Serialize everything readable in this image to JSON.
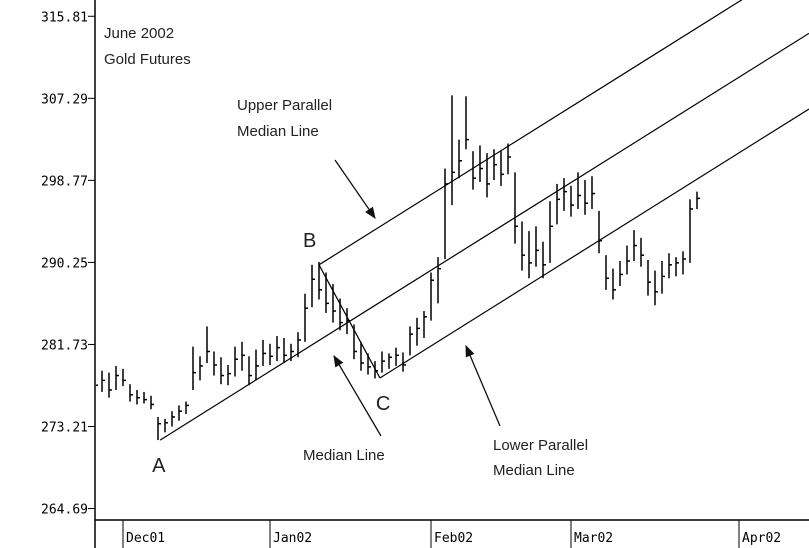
{
  "chart_data": {
    "type": "ohlc",
    "title": [
      "June 2002",
      "Gold Futures"
    ],
    "x": [
      0,
      1,
      2,
      3,
      4,
      5,
      6,
      7,
      8,
      9,
      10,
      11,
      12,
      13,
      14,
      15,
      16,
      17,
      18,
      19,
      20,
      21,
      22,
      23,
      24,
      25,
      26,
      27,
      28,
      29,
      30,
      31,
      32,
      33,
      34,
      35,
      36,
      37,
      38,
      39,
      40,
      41,
      42,
      43,
      44,
      45,
      46,
      47,
      48,
      49,
      50,
      51,
      52,
      53,
      54,
      55,
      56,
      57,
      58,
      59,
      60,
      61,
      62,
      63,
      64,
      65,
      66,
      67,
      68,
      69,
      70,
      71,
      72,
      73,
      74,
      75,
      76,
      77,
      78,
      79,
      80,
      81,
      82,
      83,
      84,
      85,
      86
    ],
    "high": [
      278.5,
      279,
      278.8,
      279.5,
      279.2,
      277.6,
      277,
      276.8,
      276.4,
      274.2,
      274,
      274.8,
      275.4,
      275.8,
      281.5,
      280.5,
      283.6,
      281,
      280.4,
      279.6,
      281.5,
      282,
      280.5,
      281.2,
      282.2,
      281.8,
      282.6,
      282.4,
      281.8,
      283,
      287,
      290,
      290.3,
      289.2,
      288,
      286.5,
      285.5,
      283.8,
      282,
      280.8,
      280,
      281,
      280.8,
      281.4,
      280.9,
      283.6,
      284.5,
      285.2,
      289.2,
      290.8,
      300,
      307.6,
      303,
      307.5,
      301.8,
      302.4,
      301.6,
      302,
      301.8,
      302.6,
      299.6,
      294.5,
      293.5,
      294,
      292.4,
      296.6,
      298.4,
      299,
      298.2,
      299.6,
      298.8,
      299.2,
      295.6,
      291,
      289.6,
      290.4,
      292,
      293.6,
      292.8,
      290.5,
      289.4,
      290.4,
      291.2,
      290.8,
      291.4,
      296.8,
      297.6
    ],
    "low": [
      276.5,
      276.8,
      276.2,
      277,
      277.4,
      275.8,
      275.5,
      275.6,
      275,
      271.8,
      272.6,
      273.2,
      273.8,
      274.5,
      277,
      278,
      279.8,
      278.5,
      277.6,
      277.5,
      278.4,
      279,
      277.5,
      278,
      279.5,
      279.6,
      280,
      279.8,
      280,
      280.4,
      282,
      285.6,
      286.4,
      285,
      284,
      283.2,
      282.8,
      280.2,
      279,
      278.6,
      278.2,
      278.8,
      279.2,
      279.5,
      278.9,
      280.6,
      281.6,
      282.4,
      284.2,
      286,
      290.6,
      296.2,
      299,
      302,
      297.8,
      298.6,
      297,
      298.8,
      298.2,
      299.4,
      292.2,
      289.4,
      288.6,
      289.8,
      288.6,
      290.2,
      294.2,
      295.6,
      295,
      295.8,
      295.2,
      295.8,
      291.2,
      287.4,
      286.4,
      287.8,
      289,
      290.4,
      289.8,
      286.8,
      285.8,
      287,
      288.6,
      288.8,
      289,
      290.2,
      295.8
    ],
    "close": [
      277.5,
      278,
      277,
      278.5,
      278,
      276.5,
      276.2,
      276,
      275.5,
      273.5,
      273.6,
      274.2,
      274.8,
      275.4,
      278.8,
      279.5,
      281,
      279.6,
      278.5,
      278.7,
      280.2,
      280.6,
      278.5,
      279.5,
      280.8,
      280.5,
      281.4,
      280.6,
      281,
      282.2,
      285.5,
      288.5,
      287.4,
      286,
      285.2,
      284,
      284.2,
      281,
      279.8,
      279.4,
      279,
      280,
      280.4,
      280.6,
      279.6,
      282.8,
      283.4,
      284.6,
      288.4,
      289.6,
      298.4,
      299.6,
      300.8,
      303,
      299,
      300,
      298.4,
      300.4,
      299.4,
      301.2,
      294,
      291,
      290.2,
      291.5,
      290,
      294,
      296.8,
      297.6,
      296.2,
      297.2,
      296.4,
      297.4,
      292.5,
      288.6,
      287.4,
      289,
      290.4,
      292,
      291,
      288.2,
      287.2,
      288.8,
      290,
      290.2,
      290.6,
      295.8,
      296.9
    ],
    "color": "#000000",
    "xlim": [
      0,
      102
    ],
    "xticks": [
      {
        "value": 4,
        "label": "Dec01"
      },
      {
        "value": 25,
        "label": "Jan02"
      },
      {
        "value": 48,
        "label": "Feb02"
      },
      {
        "value": 68,
        "label": "Mar02"
      },
      {
        "value": 92,
        "label": "Apr02"
      }
    ],
    "ylim": [
      263.5,
      317.5
    ],
    "yticks": [
      315.81,
      307.29,
      298.77,
      290.25,
      281.73,
      273.21,
      264.69
    ],
    "pitchfork": {
      "points": [
        {
          "label": "A",
          "x": 9.3,
          "y": 271.8
        },
        {
          "label": "B",
          "x": 32,
          "y": 290.0
        },
        {
          "label": "C",
          "x": 40.7,
          "y": 278.25
        }
      ]
    },
    "annotations": [
      [
        "Upper Parallel",
        "Median Line"
      ],
      [
        "Median Line"
      ],
      [
        "Lower Parallel",
        "Median Line"
      ]
    ]
  }
}
